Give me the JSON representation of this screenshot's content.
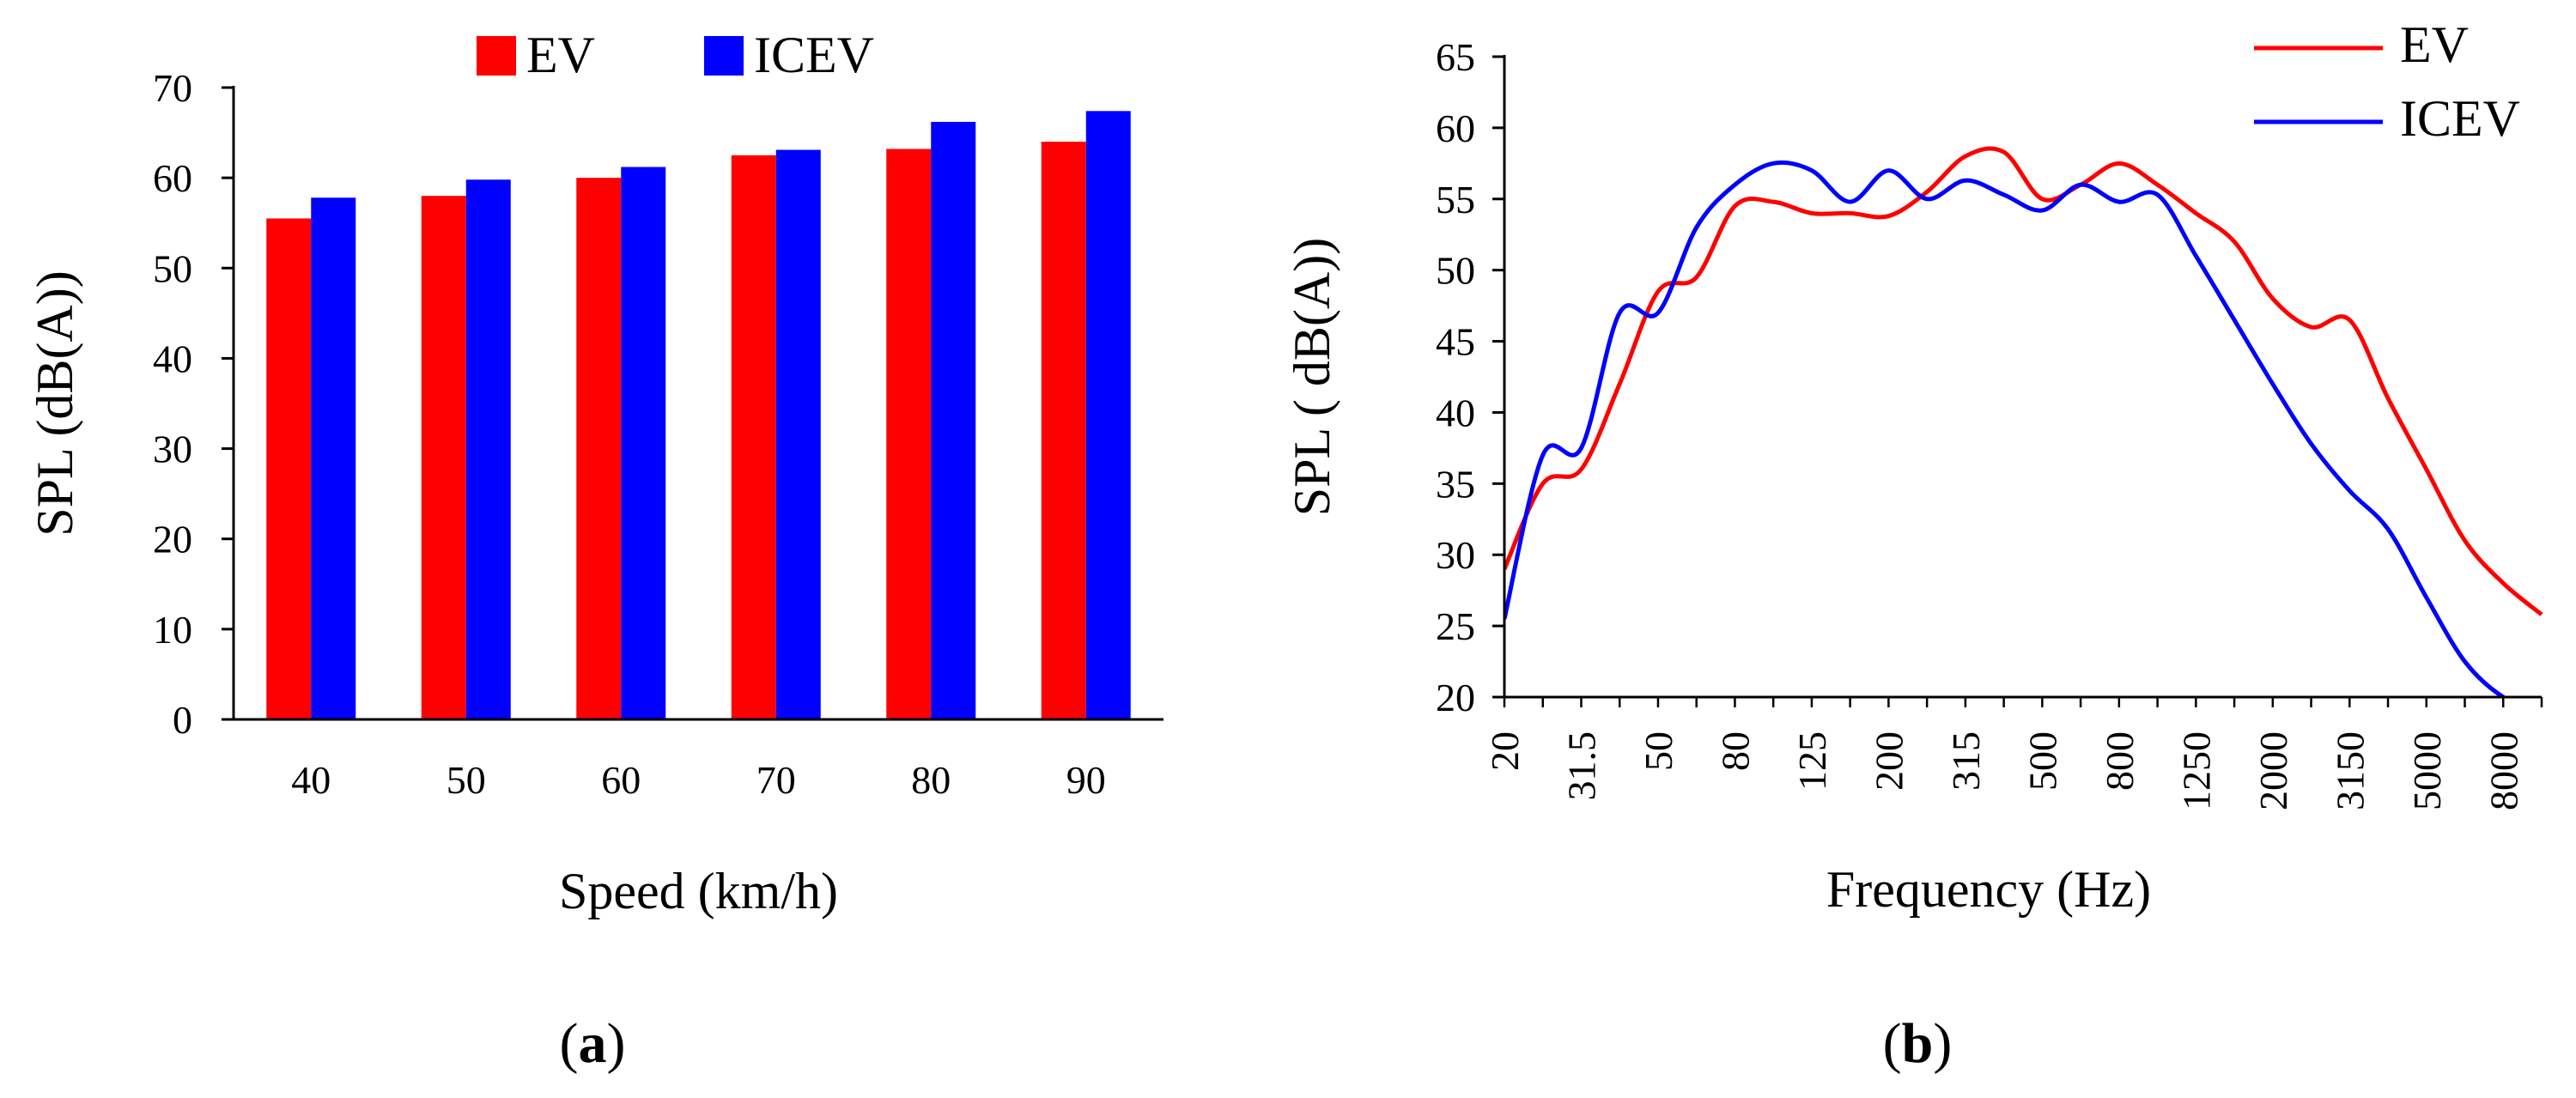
{
  "chart_data": [
    {
      "type": "bar",
      "panel_label": "(a)",
      "panel_letter": "a",
      "xlabel": "Speed (km/h)",
      "ylabel": "SPL (dB(A))",
      "categories": [
        "40",
        "50",
        "60",
        "70",
        "80",
        "90"
      ],
      "series": [
        {
          "name": "EV",
          "color": "#ff0000",
          "values": [
            55.5,
            58,
            60,
            62.5,
            63.2,
            64
          ]
        },
        {
          "name": "ICEV",
          "color": "#0000ff",
          "values": [
            57.8,
            59.8,
            61.2,
            63.1,
            66.2,
            67.4
          ]
        }
      ],
      "ylim": [
        0,
        70
      ],
      "yticks": [
        "0",
        "10",
        "20",
        "30",
        "40",
        "50",
        "60",
        "70"
      ],
      "legend": "top",
      "grid": false
    },
    {
      "type": "line",
      "panel_label": "(b)",
      "panel_letter": "b",
      "xlabel": "Frequency (Hz)",
      "ylabel": "SPL ( dB(A))",
      "x_axis_scale": "log (1/3-octave bands)",
      "xtick_labels": [
        "20",
        "31.5",
        "50",
        "80",
        "125",
        "200",
        "315",
        "500",
        "800",
        "1250",
        "2000",
        "3150",
        "5000",
        "8000"
      ],
      "x": [
        20,
        25,
        31.5,
        40,
        50,
        63,
        80,
        100,
        125,
        160,
        200,
        250,
        315,
        400,
        500,
        630,
        800,
        1000,
        1250,
        1600,
        2000,
        2500,
        3150,
        4000,
        5000,
        6300,
        8000,
        10000
      ],
      "series": [
        {
          "name": "EV",
          "color": "#ff0000",
          "values": [
            29,
            35,
            36,
            42,
            48.5,
            49.5,
            54.5,
            54.8,
            54,
            54,
            53.8,
            55.5,
            58,
            58.3,
            55,
            56,
            57.5,
            56,
            54,
            52,
            48,
            46,
            46.5,
            41,
            36,
            31,
            28,
            25.8
          ]
        },
        {
          "name": "ICEV",
          "color": "#0000ff",
          "values": [
            25.5,
            37,
            37.5,
            47,
            47,
            53,
            56,
            57.5,
            57,
            54.8,
            57,
            55,
            56.3,
            55.3,
            54.2,
            56,
            54.8,
            55.3,
            51,
            46.5,
            42,
            37.8,
            34.5,
            31.8,
            27,
            22.5,
            20,
            19
          ]
        }
      ],
      "ylim": [
        20,
        65
      ],
      "yticks": [
        "20",
        "25",
        "30",
        "35",
        "40",
        "45",
        "50",
        "55",
        "60",
        "65"
      ],
      "legend": "top-right",
      "grid": false
    }
  ]
}
